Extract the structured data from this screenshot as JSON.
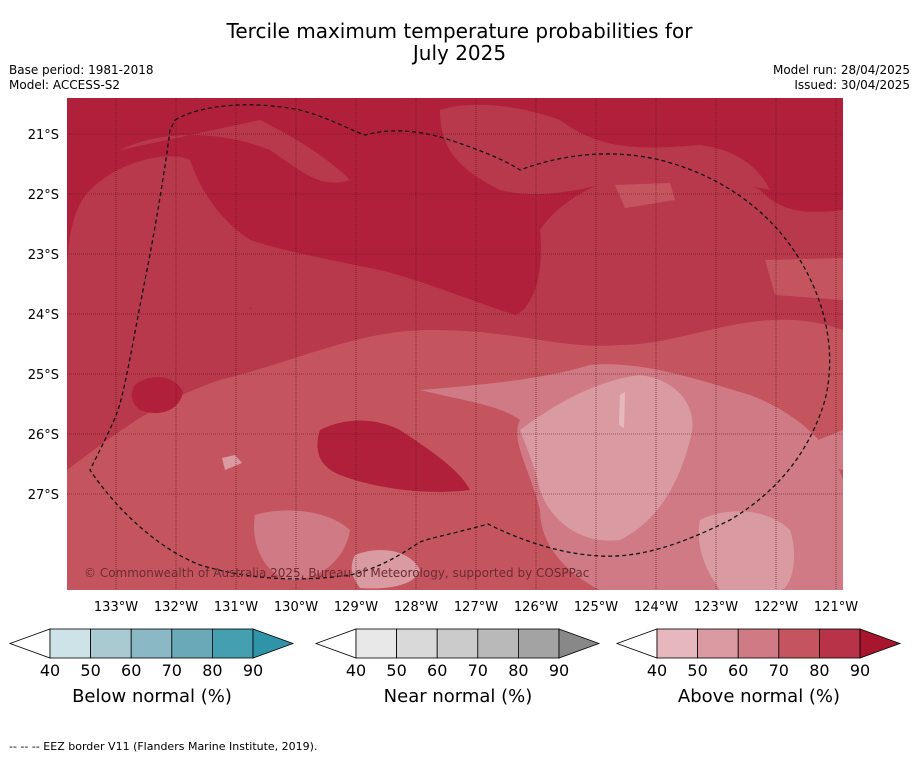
{
  "title_line1": "Tercile maximum temperature probabilities for",
  "title_line2": "July 2025",
  "base_period": "Base period: 1981-2018",
  "model": "Model: ACCESS-S2",
  "model_run": "Model run: 28/04/2025",
  "issued": "Issued: 30/04/2025",
  "copyright": "© Commonwealth of Australia 2025, Bureau of Meteorology, supported by COSPPac",
  "lat_labels": [
    "21°S",
    "22°S",
    "23°S",
    "24°S",
    "25°S",
    "26°S",
    "27°S"
  ],
  "lon_labels": [
    "133°W",
    "132°W",
    "131°W",
    "130°W",
    "129°W",
    "128°W",
    "127°W",
    "126°W",
    "125°W",
    "124°W",
    "123°W",
    "122°W",
    "121°W"
  ],
  "colorbars": [
    {
      "label": "Below normal (%)",
      "ticks": [
        "40",
        "50",
        "60",
        "70",
        "80",
        "90"
      ],
      "colors": [
        "#ffffff",
        "#cde3e8",
        "#a9cad1",
        "#8ab8c4",
        "#69a9b8",
        "#44a0b0",
        "#2f94a7"
      ]
    },
    {
      "label": "Near normal (%)",
      "ticks": [
        "40",
        "50",
        "60",
        "70",
        "80",
        "90"
      ],
      "colors": [
        "#ffffff",
        "#e8e8e8",
        "#d9d9d9",
        "#cbcbcb",
        "#b9b9b9",
        "#a3a3a3",
        "#888888"
      ]
    },
    {
      "label": "Above normal (%)",
      "ticks": [
        "40",
        "50",
        "60",
        "70",
        "80",
        "90"
      ],
      "colors": [
        "#ffffff",
        "#e6b8be",
        "#d99aa2",
        "#cf7a84",
        "#c4555f",
        "#b83347",
        "#a8162e"
      ]
    }
  ],
  "footnote": "--  --  -- EEZ border V11 (Flanders Marine Institute, 2019)."
}
